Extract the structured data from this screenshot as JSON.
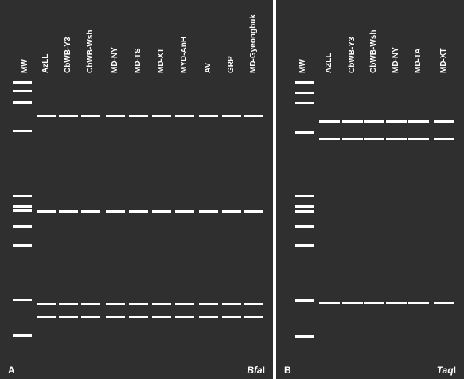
{
  "panels": [
    {
      "letter": "A",
      "enzyme": "Bfa",
      "enzyme_suffix": "I",
      "marker_label": "MW",
      "lanes": [
        "AzLL",
        "CbWB-Y3",
        "CbWB-Wsh",
        "MD-NY",
        "MD-TS",
        "MD-XT",
        "MYD-AnH",
        "AV",
        "GRP",
        "MD-Gyeongbuk"
      ]
    },
    {
      "letter": "B",
      "enzyme": "Taq",
      "enzyme_suffix": "I",
      "marker_label": "MW",
      "lanes": [
        "AZLL",
        "CbWB-Y3",
        "CbWB-Wsh",
        "MD-NY",
        "MD-TA",
        "MD-XT"
      ]
    }
  ]
}
